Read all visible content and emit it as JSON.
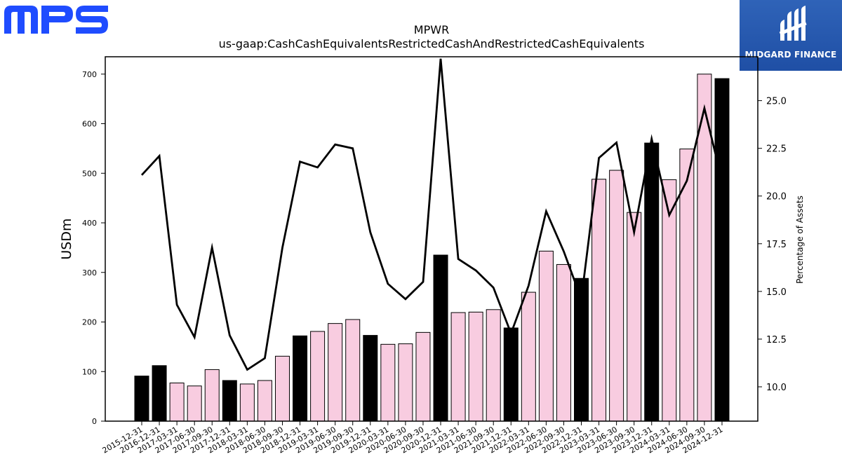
{
  "logos": {
    "left_text": "MPS",
    "left_color": "#1f4cff",
    "right_text": "MIDGARD FINANCE",
    "right_color": "#2a5bb0"
  },
  "chart_data": {
    "type": "bar",
    "title": "MPWR",
    "subtitle": "us-gaap:CashCashEquivalentsRestrictedCashAndRestrictedCashEquivalents",
    "ylabel": "USDm",
    "y2label": "Percentage of Assets",
    "ylim": [
      0,
      735
    ],
    "y2lim": [
      8.2,
      27.3
    ],
    "yticks": [
      0,
      100,
      200,
      300,
      400,
      500,
      600,
      700
    ],
    "y2ticks": [
      "10.0",
      "12.5",
      "15.0",
      "17.5",
      "20.0",
      "22.5",
      "25.0"
    ],
    "grid": false,
    "categories": [
      "2015-12-31",
      "2016-12-31",
      "2017-03-31",
      "2017-06-30",
      "2017-09-30",
      "2017-12-31",
      "2018-03-31",
      "2018-06-30",
      "2018-09-30",
      "2018-12-31",
      "2019-03-31",
      "2019-06-30",
      "2019-09-30",
      "2019-12-31",
      "2020-03-31",
      "2020-06-30",
      "2020-09-30",
      "2020-12-31",
      "2021-03-31",
      "2021-06-30",
      "2021-09-30",
      "2021-12-31",
      "2022-03-31",
      "2022-06-30",
      "2022-09-30",
      "2022-12-31",
      "2023-03-31",
      "2023-06-30",
      "2023-09-30",
      "2023-12-31",
      "2024-03-31",
      "2024-06-30",
      "2024-09-30",
      "2024-12-31"
    ],
    "series": [
      {
        "kind": "bar",
        "values": [
          91,
          112,
          77,
          71,
          104,
          82,
          75,
          82,
          131,
          172,
          181,
          197,
          205,
          173,
          155,
          156,
          179,
          335,
          219,
          220,
          225,
          188,
          260,
          343,
          316,
          288,
          488,
          506,
          421,
          561,
          487,
          549,
          700,
          691
        ],
        "annual_flags": [
          true,
          true,
          false,
          false,
          false,
          true,
          false,
          false,
          false,
          true,
          false,
          false,
          false,
          true,
          false,
          false,
          false,
          true,
          false,
          false,
          false,
          true,
          false,
          false,
          false,
          true,
          false,
          false,
          false,
          true,
          false,
          false,
          false,
          true
        ],
        "annual_color": "#000000",
        "quarter_color": "#f8cce0"
      },
      {
        "kind": "line",
        "axis": "right",
        "values": [
          21.1,
          22.1,
          14.3,
          12.6,
          17.3,
          12.7,
          10.9,
          11.5,
          17.3,
          21.8,
          21.5,
          22.7,
          22.5,
          18.1,
          15.4,
          14.6,
          15.5,
          27.2,
          16.7,
          16.1,
          15.2,
          12.8,
          15.3,
          19.2,
          17.1,
          14.6,
          22.0,
          22.8,
          18.1,
          23.0,
          19.0,
          20.8,
          24.6,
          20.8
        ],
        "color": "#000000"
      }
    ]
  }
}
